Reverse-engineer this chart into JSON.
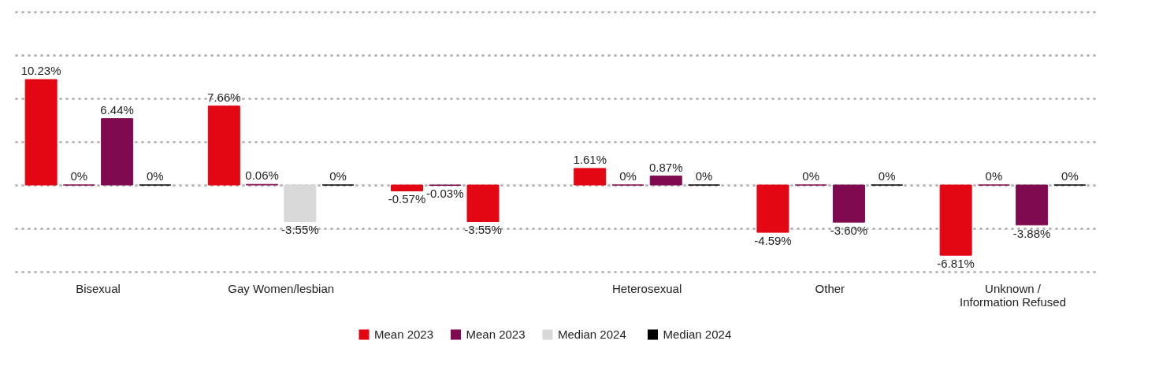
{
  "chart_data": {
    "type": "bar",
    "categories": [
      "Bisexual",
      "Gay Women/lesbian",
      null,
      "Heterosexual",
      "Other",
      "Unknown /\nInformation Refused"
    ],
    "series": [
      {
        "name": "Mean 2023",
        "color": "#e30613",
        "values": [
          10.23,
          7.66,
          -0.57,
          1.61,
          -4.59,
          -6.81
        ],
        "value_labels": [
          "10.23%",
          "7.66%",
          "-0.57%",
          "1.61%",
          "-4.59%",
          "-6.81%"
        ],
        "colors": [
          "#e30613",
          "#e30613",
          "#e30613",
          "#e30613",
          "#e30613",
          "#e30613"
        ]
      },
      {
        "name": "Mean 2023",
        "color": "#800a50",
        "values": [
          0,
          0.06,
          -0.03,
          0,
          0,
          0
        ],
        "value_labels": [
          "0%",
          "0.06%",
          "-0.03%",
          "0%",
          "0%",
          "0%"
        ],
        "colors": [
          "#800a50",
          "#800a50",
          "#800a50",
          "#800a50",
          "#800a50",
          "#800a50"
        ]
      },
      {
        "name": "Median 2024",
        "color": "#d9d9d9",
        "values": [
          6.44,
          -3.55,
          -3.55,
          0.87,
          -3.6,
          -3.88
        ],
        "value_labels": [
          "6.44%",
          "-3.55%",
          "-3.55%",
          "0.87%",
          "-3.60%",
          "-3.88%"
        ],
        "colors": [
          "#800a50",
          "#d9d9d9",
          "#e30613",
          "#800a50",
          "#800a50",
          "#800a50"
        ]
      },
      {
        "name": "Median 2024",
        "color": "#000000",
        "values": [
          0,
          0,
          null,
          0,
          0,
          0
        ],
        "value_labels": [
          "0%",
          "0%",
          null,
          "0%",
          "0%",
          "0%"
        ],
        "colors": [
          "#000000",
          "#000000",
          "#000000",
          "#000000",
          "#000000",
          "#000000"
        ]
      }
    ],
    "ylim": [
      -8.4,
      16.8
    ],
    "yticks": [
      {
        "value": -8.4,
        "label": null
      },
      {
        "value": -4.2,
        "label": null
      },
      {
        "value": 0,
        "label": null
      },
      {
        "value": 4.2,
        "label": null
      },
      {
        "value": 8.4,
        "label": null
      },
      {
        "value": 12.6,
        "label": null
      },
      {
        "value": 16.8,
        "label": null
      }
    ],
    "grid": "y",
    "tick_labels": "x",
    "legend": "bottom"
  }
}
